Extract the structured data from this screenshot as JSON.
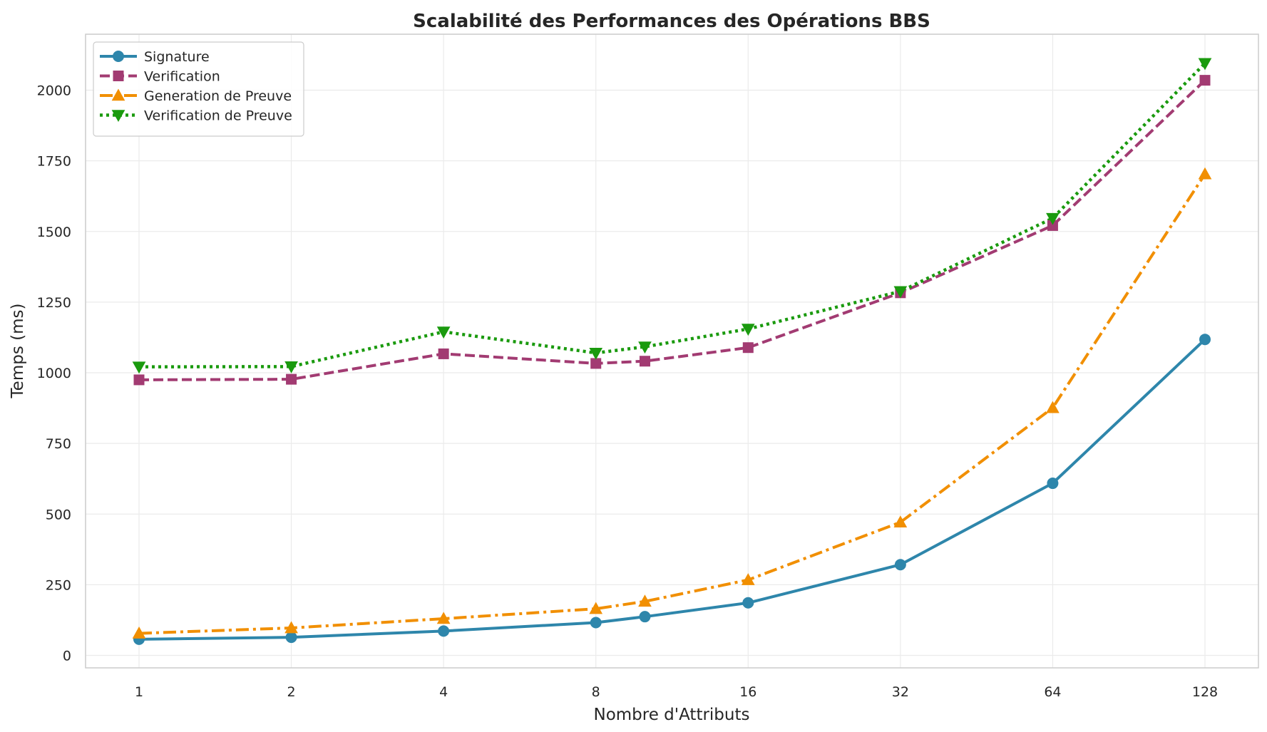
{
  "chart_data": {
    "type": "line",
    "title": "Scalabilité des Performances des Opérations BBS",
    "xlabel": "Nombre d'Attributs",
    "ylabel": "Temps (ms)",
    "x_scale": "log2",
    "x_ticks": [
      1,
      2,
      4,
      8,
      16,
      32,
      64,
      128
    ],
    "x_tick_labels": [
      "1",
      "2",
      "4",
      "8",
      "16",
      "32",
      "64",
      "128"
    ],
    "y_ticks": [
      0,
      250,
      500,
      750,
      1000,
      1250,
      1500,
      1750,
      2000
    ],
    "y_tick_labels": [
      "0",
      "250",
      "500",
      "750",
      "1000",
      "1250",
      "1500",
      "1750",
      "2000"
    ],
    "ylim": [
      -22,
      2200
    ],
    "grid": true,
    "legend_position": "top-left",
    "x": [
      1,
      2,
      4,
      8,
      10,
      16,
      32,
      64,
      128
    ],
    "series": [
      {
        "name": "Signature",
        "color": "#2e86ab",
        "line_style": "solid",
        "marker": "circle",
        "values": [
          57,
          64,
          86,
          116,
          137,
          186,
          321,
          609,
          1118
        ]
      },
      {
        "name": "Verification",
        "color": "#a23b72",
        "line_style": "dashed",
        "marker": "square",
        "values": [
          975,
          977,
          1067,
          1033,
          1041,
          1089,
          1283,
          1521,
          2035
        ]
      },
      {
        "name": "Generation de Preuve",
        "color": "#f18f01",
        "line_style": "dashdot",
        "marker": "triangle-up",
        "values": [
          78,
          97,
          130,
          165,
          191,
          267,
          471,
          876,
          1703
        ]
      },
      {
        "name": "Verification de Preuve",
        "color": "#1a9a0e",
        "line_style": "dotted",
        "marker": "triangle-down",
        "values": [
          1021,
          1022,
          1145,
          1070,
          1092,
          1155,
          1288,
          1547,
          2095
        ]
      }
    ]
  }
}
